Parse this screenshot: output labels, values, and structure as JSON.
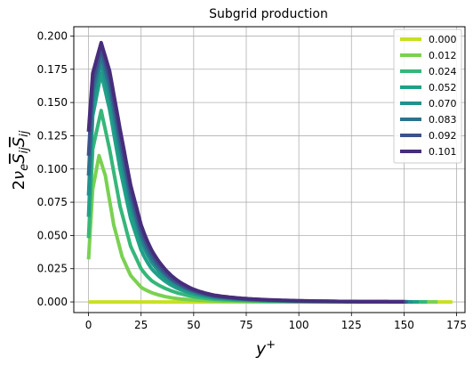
{
  "chart_data": {
    "type": "line",
    "title": "Subgrid production",
    "xlabel": "y⁺",
    "ylabel": "2νₑS̄ᵢⱼS̄ᵢⱼ",
    "xlim": [
      -7,
      179
    ],
    "ylim": [
      -0.008,
      0.207
    ],
    "xticks": [
      0,
      25,
      50,
      75,
      100,
      125,
      150,
      175
    ],
    "yticks": [
      0.0,
      0.025,
      0.05,
      0.075,
      0.1,
      0.125,
      0.15,
      0.175,
      0.2
    ],
    "xtick_labels": [
      "0",
      "25",
      "50",
      "75",
      "100",
      "125",
      "150",
      "175"
    ],
    "ytick_labels": [
      "0.000",
      "0.025",
      "0.050",
      "0.075",
      "0.100",
      "0.125",
      "0.150",
      "0.175",
      "0.200"
    ],
    "grid": true,
    "legend_position": "top-right",
    "series": [
      {
        "name": "0.000",
        "color": "#c7e020",
        "y_plus_end": 173,
        "x": [
          0,
          5,
          10,
          25,
          50,
          100,
          150,
          173
        ],
        "y": [
          0,
          0,
          0,
          0,
          0,
          0,
          0,
          0
        ]
      },
      {
        "name": "0.012",
        "color": "#7ad151",
        "y_plus_end": 166,
        "x": [
          0,
          2,
          5,
          8,
          12,
          16,
          20,
          25,
          30,
          40,
          50,
          60,
          75,
          100,
          125,
          150,
          166
        ],
        "y": [
          0.032,
          0.085,
          0.11,
          0.095,
          0.058,
          0.034,
          0.02,
          0.011,
          0.007,
          0.003,
          0.0015,
          0.0008,
          0.0004,
          0.0001,
          5e-05,
          2e-05,
          1e-05
        ]
      },
      {
        "name": "0.024",
        "color": "#35b779",
        "y_plus_end": 161,
        "x": [
          0,
          2,
          6,
          10,
          15,
          20,
          25,
          30,
          40,
          50,
          60,
          75,
          100,
          125,
          150,
          161
        ],
        "y": [
          0.048,
          0.115,
          0.144,
          0.115,
          0.072,
          0.042,
          0.025,
          0.016,
          0.008,
          0.004,
          0.002,
          0.001,
          0.0003,
          0.0001,
          5e-05,
          2e-05
        ]
      },
      {
        "name": "0.052",
        "color": "#1fa187",
        "y_plus_end": 157,
        "x": [
          0,
          2,
          6,
          10,
          15,
          20,
          25,
          30,
          40,
          50,
          60,
          75,
          100,
          125,
          150,
          157
        ],
        "y": [
          0.064,
          0.14,
          0.172,
          0.145,
          0.1,
          0.063,
          0.039,
          0.025,
          0.012,
          0.006,
          0.003,
          0.0015,
          0.0005,
          0.0002,
          0.0001,
          5e-05
        ]
      },
      {
        "name": "0.070",
        "color": "#21918c",
        "y_plus_end": 154,
        "x": [
          0,
          2,
          6,
          10,
          15,
          20,
          25,
          30,
          40,
          50,
          60,
          75,
          100,
          125,
          150,
          154
        ],
        "y": [
          0.08,
          0.15,
          0.18,
          0.155,
          0.11,
          0.072,
          0.046,
          0.03,
          0.014,
          0.007,
          0.0035,
          0.0018,
          0.0006,
          0.0002,
          0.0001,
          5e-05
        ]
      },
      {
        "name": "0.083",
        "color": "#2c728e",
        "y_plus_end": 152,
        "x": [
          0,
          2,
          6,
          10,
          15,
          20,
          25,
          30,
          40,
          50,
          60,
          75,
          100,
          125,
          150,
          152
        ],
        "y": [
          0.095,
          0.158,
          0.186,
          0.162,
          0.118,
          0.078,
          0.05,
          0.033,
          0.016,
          0.008,
          0.004,
          0.002,
          0.0007,
          0.0003,
          0.0001,
          5e-05
        ]
      },
      {
        "name": "0.092",
        "color": "#3b528b",
        "y_plus_end": 151,
        "x": [
          0,
          2,
          6,
          10,
          15,
          20,
          25,
          30,
          40,
          50,
          60,
          75,
          100,
          125,
          150,
          151
        ],
        "y": [
          0.11,
          0.165,
          0.191,
          0.168,
          0.124,
          0.083,
          0.054,
          0.036,
          0.017,
          0.0085,
          0.0045,
          0.0022,
          0.0008,
          0.0003,
          0.0001,
          5e-05
        ]
      },
      {
        "name": "0.101",
        "color": "#472d7b",
        "y_plus_end": 150,
        "x": [
          0,
          2,
          6,
          10,
          15,
          20,
          25,
          30,
          40,
          50,
          60,
          75,
          100,
          125,
          150
        ],
        "y": [
          0.128,
          0.172,
          0.195,
          0.174,
          0.13,
          0.088,
          0.058,
          0.039,
          0.019,
          0.0095,
          0.005,
          0.0025,
          0.0009,
          0.0003,
          0.0001
        ]
      }
    ]
  }
}
